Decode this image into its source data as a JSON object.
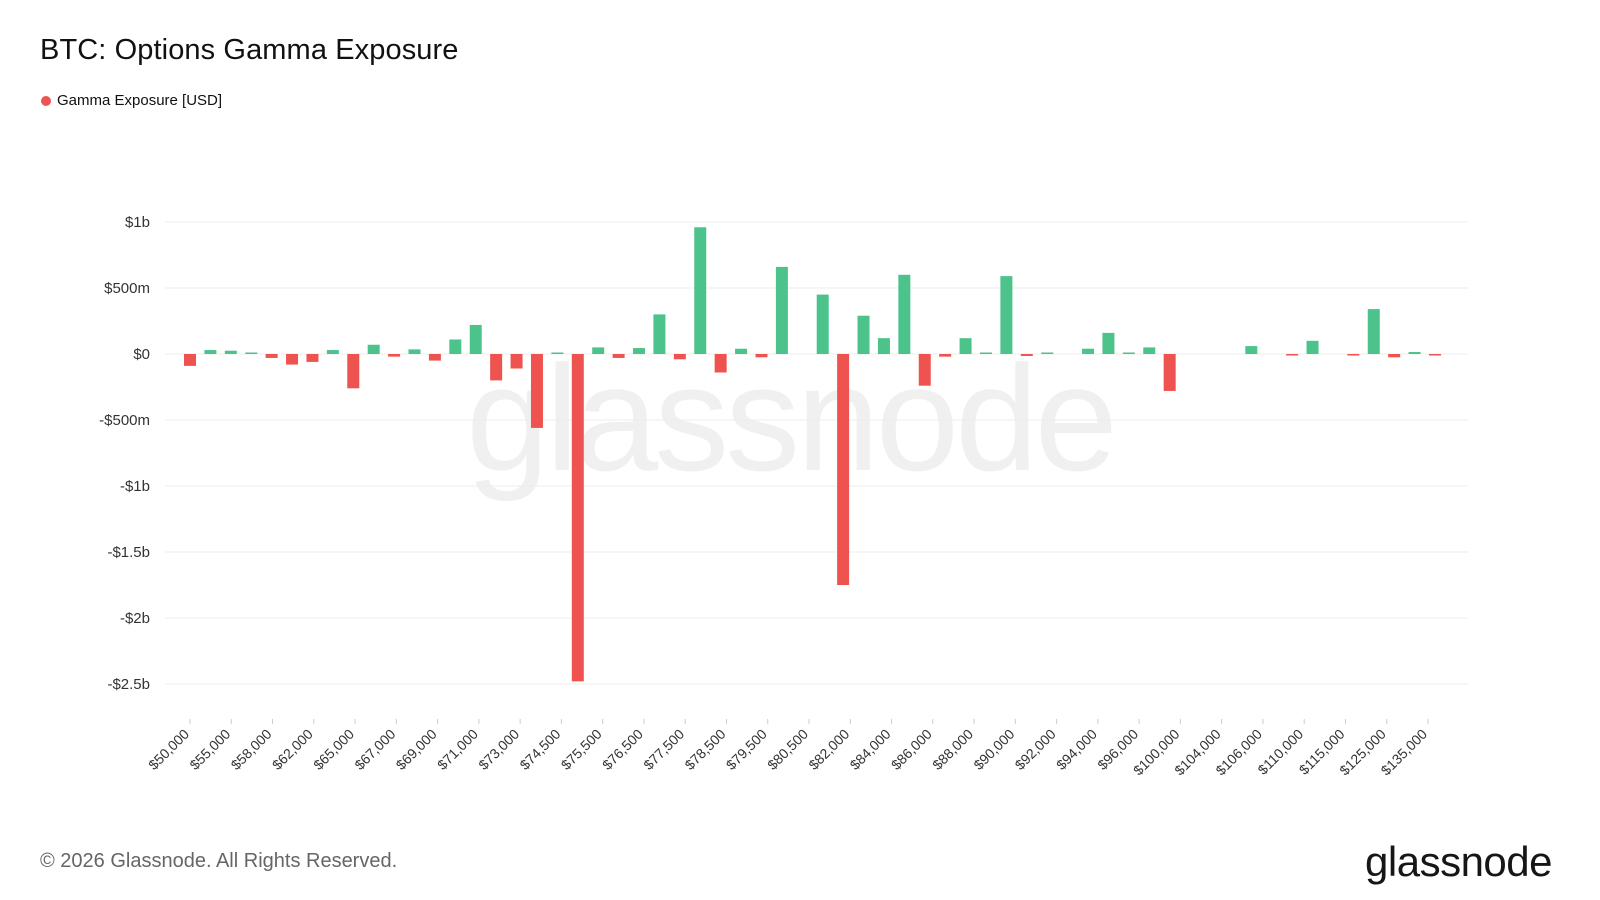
{
  "title": "BTC: Options Gamma Exposure",
  "legend": {
    "label": "Gamma Exposure [USD]",
    "color": "#ef5350"
  },
  "footer": "© 2026 Glassnode. All Rights Reserved.",
  "brand": "glassnode",
  "watermark": "glassnode",
  "colors": {
    "positive": "#4cc38a",
    "negative": "#ef5350",
    "grid": "#ececec",
    "axis_text": "#333333"
  },
  "chart_data": {
    "type": "bar",
    "ylim": [
      -2.5,
      1.0
    ],
    "y_unit": "billion USD",
    "y_ticks": [
      {
        "value": 1,
        "label": "$1b"
      },
      {
        "value": 0.5,
        "label": "$500m"
      },
      {
        "value": 0,
        "label": "$0"
      },
      {
        "value": -0.5,
        "label": "-$500m"
      },
      {
        "value": -1,
        "label": "-$1b"
      },
      {
        "value": -1.5,
        "label": "-$1.5b"
      },
      {
        "value": -2,
        "label": "-$2b"
      },
      {
        "value": -2.5,
        "label": "-$2.5b"
      }
    ],
    "x_tick_labels": [
      "$50,000",
      "$55,000",
      "$58,000",
      "$62,000",
      "$65,000",
      "$67,000",
      "$69,000",
      "$71,000",
      "$73,000",
      "$74,500",
      "$75,500",
      "$76,500",
      "$77,500",
      "$78,500",
      "$79,500",
      "$80,500",
      "$82,000",
      "$84,000",
      "$86,000",
      "$88,000",
      "$90,000",
      "$92,000",
      "$94,000",
      "$96,000",
      "$100,000",
      "$104,000",
      "$106,000",
      "$110,000",
      "$115,000",
      "$125,000",
      "$135,000"
    ],
    "values": [
      -0.09,
      0.03,
      0.025,
      0.005,
      -0.03,
      -0.08,
      -0.06,
      0.03,
      -0.26,
      0.07,
      -0.02,
      0.035,
      -0.05,
      0.11,
      0.22,
      -0.2,
      -0.11,
      -0.56,
      0.005,
      -2.48,
      0.05,
      -0.03,
      0.045,
      0.3,
      -0.04,
      0.96,
      -0.14,
      0.04,
      -0.025,
      0.66,
      0.0,
      0.45,
      -1.75,
      0.29,
      0.12,
      0.6,
      -0.24,
      -0.02,
      0.12,
      0.01,
      0.59,
      -0.015,
      0.01,
      0.0,
      0.04,
      0.16,
      0.005,
      0.05,
      -0.28,
      0.0,
      0.0,
      0.0,
      0.06,
      0.0,
      -0.01,
      0.1,
      0.0,
      -0.01,
      0.34,
      -0.025,
      0.015,
      -0.005
    ]
  }
}
